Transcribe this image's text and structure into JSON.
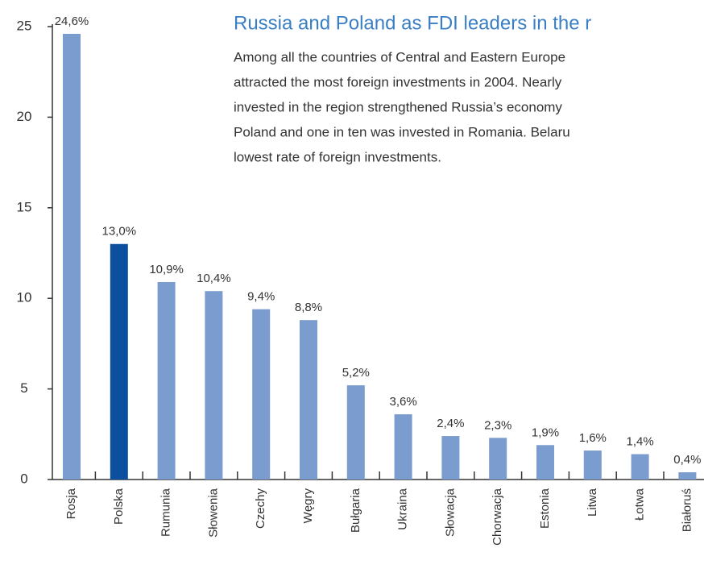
{
  "chart_data": {
    "type": "bar",
    "title": "Russia and Poland as FDI leaders in the r",
    "text_lines": [
      "Among all the countries of Central and Eastern Europe",
      "attracted the most foreign investments in 2004. Nearly",
      "invested in the region strengthened Russia’s economy",
      "Poland and one in ten was invested in Romania. Belaru",
      "lowest rate of foreign investments."
    ],
    "categories": [
      "Rosja",
      "Polska",
      "Rumunia",
      "Słowenia",
      "Czechy",
      "Węgry",
      "Bułgaria",
      "Ukraina",
      "Słowacja",
      "Chorwacja",
      "Estonia",
      "Litwa",
      "Łotwa",
      "Białoruś"
    ],
    "values": [
      24.6,
      13.0,
      10.9,
      10.4,
      9.4,
      8.8,
      5.2,
      3.6,
      2.4,
      2.3,
      1.9,
      1.6,
      1.4,
      0.4
    ],
    "value_labels": [
      "24,6%",
      "13,0%",
      "10,9%",
      "10,4%",
      "9,4%",
      "8,8%",
      "5,2%",
      "3,6%",
      "2,4%",
      "2,3%",
      "1,9%",
      "1,6%",
      "1,4%",
      "0,4%"
    ],
    "colors": [
      "#7b9ccf",
      "#0b4f9e",
      "#7b9ccf",
      "#7b9ccf",
      "#7b9ccf",
      "#7b9ccf",
      "#7b9ccf",
      "#7b9ccf",
      "#7b9ccf",
      "#7b9ccf",
      "#7b9ccf",
      "#7b9ccf",
      "#7b9ccf",
      "#7b9ccf"
    ],
    "ylim": [
      0,
      25
    ],
    "yticks": [
      0,
      5,
      10,
      15,
      20,
      25
    ],
    "grid": false
  }
}
